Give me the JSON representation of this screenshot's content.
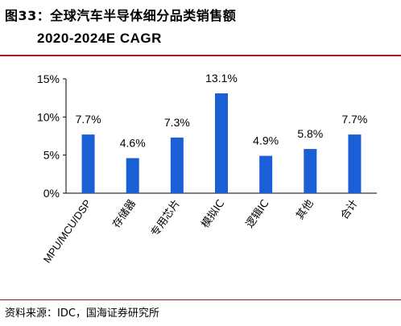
{
  "title": {
    "line1": "图33：全球汽车半导体细分品类销售额",
    "line2": "2020-2024E CAGR"
  },
  "source": "资料来源：IDC，国海证券研究所",
  "chart_data": {
    "type": "bar",
    "categories": [
      "MPU/MCU/DSP",
      "存储器",
      "专用芯片",
      "模拟IC",
      "逻辑IC",
      "其他",
      "合计"
    ],
    "values": [
      7.7,
      4.6,
      7.3,
      13.1,
      4.9,
      5.8,
      7.7
    ],
    "value_labels": [
      "7.7%",
      "4.6%",
      "7.3%",
      "13.1%",
      "4.9%",
      "5.8%",
      "7.7%"
    ],
    "yticks": [
      "0%",
      "5%",
      "10%",
      "15%"
    ],
    "ytick_values": [
      0,
      5,
      10,
      15
    ],
    "ylim": [
      0,
      15
    ],
    "title": "",
    "xlabel": "",
    "ylabel": "",
    "grid": false,
    "bar_color": "#1a5fd6"
  }
}
